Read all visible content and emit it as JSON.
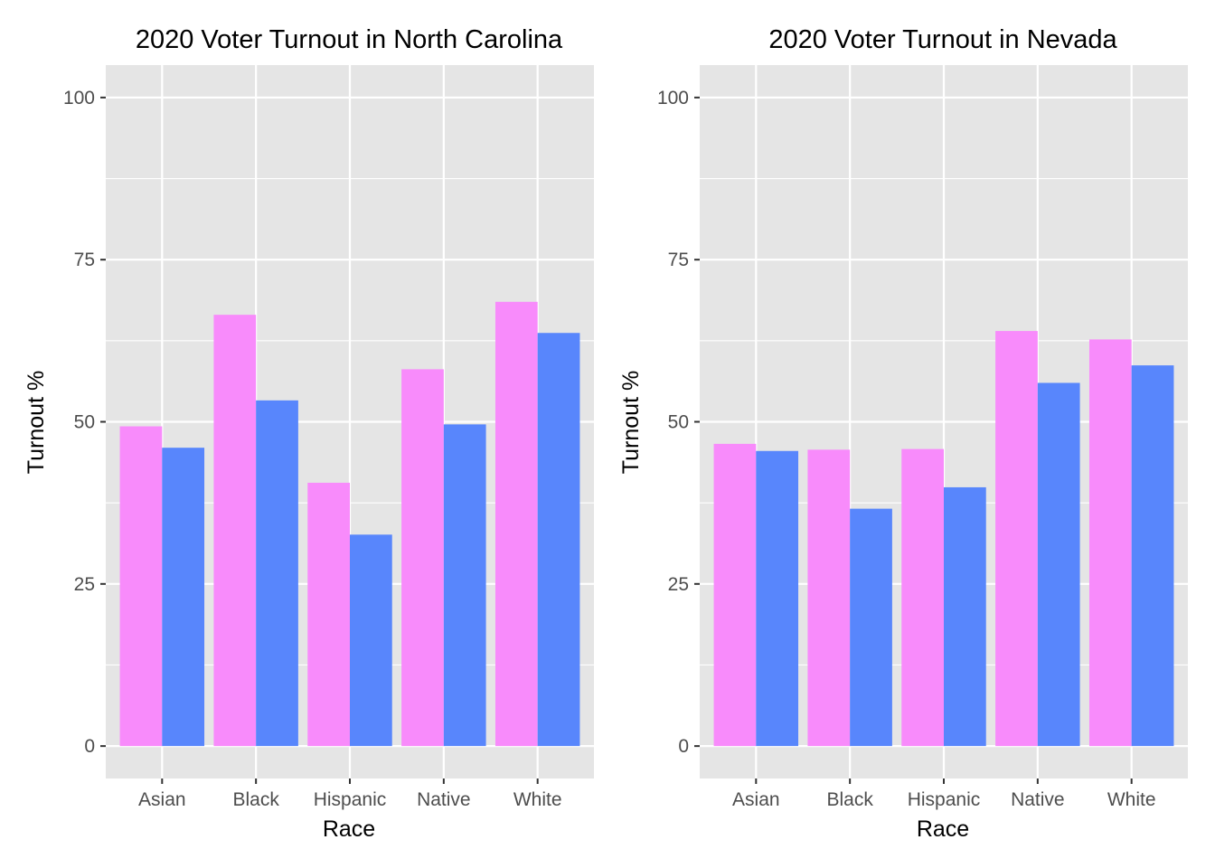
{
  "chart_data": [
    {
      "type": "bar",
      "title": "2020 Voter Turnout in North Carolina",
      "xlabel": "Race",
      "ylabel": "Turnout %",
      "categories": [
        "Asian",
        "Black",
        "Hispanic",
        "Native",
        "White"
      ],
      "ylim": [
        0,
        100
      ],
      "yticks": [
        0,
        25,
        50,
        75,
        100
      ],
      "series": [
        {
          "color": "#f88bfb",
          "values": [
            49.3,
            66.5,
            40.6,
            58.1,
            68.5
          ]
        },
        {
          "color": "#5886fc",
          "values": [
            46.0,
            53.3,
            32.6,
            49.6,
            63.7
          ]
        }
      ],
      "grid": true,
      "legend": "none"
    },
    {
      "type": "bar",
      "title": "2020 Voter Turnout in Nevada",
      "xlabel": "Race",
      "ylabel": "Turnout %",
      "categories": [
        "Asian",
        "Black",
        "Hispanic",
        "Native",
        "White"
      ],
      "ylim": [
        0,
        100
      ],
      "yticks": [
        0,
        25,
        50,
        75,
        100
      ],
      "series": [
        {
          "color": "#f88bfb",
          "values": [
            46.6,
            45.7,
            45.8,
            64.0,
            62.7
          ]
        },
        {
          "color": "#5886fc",
          "values": [
            45.5,
            36.6,
            39.9,
            56.0,
            58.7
          ]
        }
      ],
      "grid": true,
      "legend": "none"
    }
  ],
  "colors": {
    "panel_background": "#e5e5e5",
    "gridline": "#ffffff",
    "tick_label": "#4d4d4d",
    "tick_mark": "#333333"
  }
}
